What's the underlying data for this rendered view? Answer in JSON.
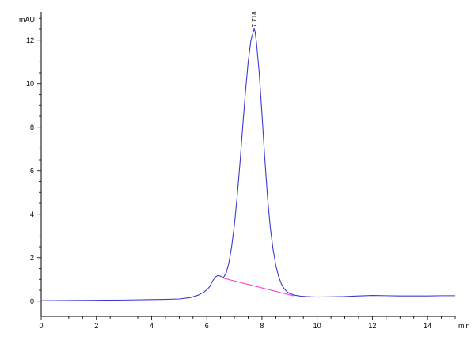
{
  "chart_data": {
    "type": "line",
    "title": "",
    "xlabel": "min",
    "ylabel": "mAU",
    "xlim": [
      0,
      15
    ],
    "ylim": [
      -0.7,
      13.3
    ],
    "x_ticks": [
      0,
      2,
      4,
      6,
      8,
      10,
      12,
      14
    ],
    "y_ticks": [
      0,
      2,
      4,
      6,
      8,
      10,
      12
    ],
    "grid": false,
    "legend": "none",
    "series": [
      {
        "color": "#3b3bd6",
        "x": [
          0,
          1,
          2,
          3,
          4,
          4.5,
          5,
          5.4,
          5.7,
          5.9,
          6.0,
          6.1,
          6.2,
          6.3,
          6.4,
          6.5,
          6.6,
          6.7,
          6.8,
          6.9,
          7.0,
          7.1,
          7.2,
          7.3,
          7.4,
          7.5,
          7.6,
          7.7,
          7.718,
          7.75,
          7.8,
          7.9,
          8.0,
          8.1,
          8.2,
          8.3,
          8.4,
          8.5,
          8.6,
          8.7,
          8.8,
          8.9,
          9.0,
          9.2,
          9.4,
          9.6,
          9.8,
          10.0,
          10.5,
          11.0,
          11.5,
          12.0,
          12.5,
          13.0,
          13.5,
          14.0,
          14.5,
          15.0
        ],
        "y": [
          0.02,
          0.03,
          0.04,
          0.05,
          0.07,
          0.08,
          0.1,
          0.16,
          0.28,
          0.42,
          0.52,
          0.66,
          0.9,
          1.1,
          1.18,
          1.15,
          1.08,
          1.28,
          1.75,
          2.5,
          3.5,
          4.8,
          6.3,
          8.0,
          9.6,
          11.0,
          12.0,
          12.45,
          12.52,
          12.4,
          11.9,
          10.5,
          8.6,
          6.6,
          4.8,
          3.4,
          2.4,
          1.65,
          1.15,
          0.8,
          0.58,
          0.44,
          0.35,
          0.27,
          0.23,
          0.21,
          0.2,
          0.19,
          0.2,
          0.21,
          0.24,
          0.26,
          0.25,
          0.24,
          0.24,
          0.24,
          0.25,
          0.25
        ]
      }
    ],
    "baseline": {
      "color": "#ff33cc",
      "x": [
        6.62,
        9.15
      ],
      "y": [
        1.05,
        0.24
      ]
    },
    "annotations": [
      {
        "text": "7.718",
        "x": 7.718,
        "y": 12.52
      }
    ]
  }
}
